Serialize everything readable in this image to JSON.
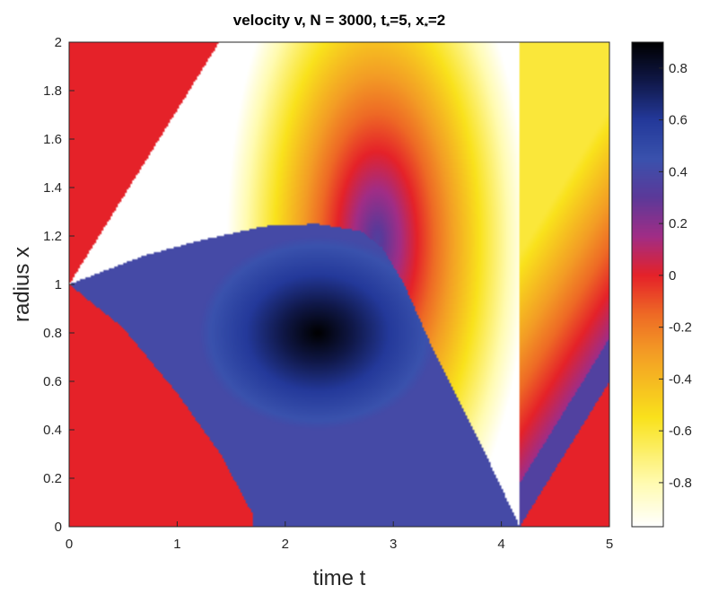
{
  "chart_data": {
    "type": "heatmap",
    "title": "velocity v, N = 3000, t",
    "title_sub1": "*",
    "title_mid": "=5, x",
    "title_sub2": "*",
    "title_end": "=2",
    "xlabel": "time t",
    "ylabel": "radius x",
    "xlim": [
      0,
      5
    ],
    "ylim": [
      0,
      2
    ],
    "xticks": [
      "0",
      "1",
      "2",
      "3",
      "4",
      "5"
    ],
    "yticks": [
      "0",
      "0.2",
      "0.4",
      "0.6",
      "0.8",
      "1",
      "1.2",
      "1.4",
      "1.6",
      "1.8",
      "2"
    ],
    "colorbar": {
      "range": [
        -0.97,
        0.9
      ],
      "ticks": [
        "-0.8",
        "-0.6",
        "-0.4",
        "-0.2",
        "0",
        "0.2",
        "0.4",
        "0.6",
        "0.8"
      ],
      "colors": [
        {
          "v": -0.97,
          "c": "#ffffff"
        },
        {
          "v": -0.8,
          "c": "#fffbb0"
        },
        {
          "v": -0.55,
          "c": "#f9e21c"
        },
        {
          "v": -0.3,
          "c": "#f39d25"
        },
        {
          "v": -0.15,
          "c": "#ee6a25"
        },
        {
          "v": 0.0,
          "c": "#e52229"
        },
        {
          "v": 0.15,
          "c": "#a12d86"
        },
        {
          "v": 0.3,
          "c": "#5c3999"
        },
        {
          "v": 0.45,
          "c": "#3a52ad"
        },
        {
          "v": 0.6,
          "c": "#24399a"
        },
        {
          "v": 0.75,
          "c": "#101848"
        },
        {
          "v": 0.9,
          "c": "#000000"
        }
      ]
    },
    "grid": false
  }
}
